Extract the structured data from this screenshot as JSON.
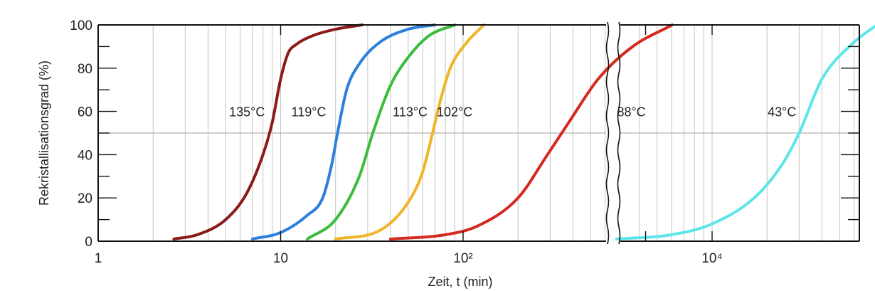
{
  "chart_data": {
    "type": "line",
    "ylabel": "Rekristallisationsgrad (%)",
    "xlabel": "Zeit, t (min)",
    "xscale": "log",
    "ylim": [
      0,
      100
    ],
    "panels": [
      {
        "xlim": [
          1,
          3000
        ]
      },
      {
        "xlim": [
          2000,
          200000
        ]
      }
    ],
    "x_tick_labels": [
      "1",
      "10",
      "10²",
      "10⁴"
    ],
    "y_tick_labels": [
      "0",
      "20",
      "40",
      "60",
      "80",
      "100"
    ],
    "grid": true,
    "reference_line_y": 50,
    "series": [
      {
        "name": "135°C",
        "color": "#8b1a1a",
        "panel": 0,
        "x": [
          2.6,
          3.5,
          5.0,
          6.5,
          8.0,
          9.0,
          10.0,
          11.0,
          12.2,
          15.0,
          20.0,
          28.0
        ],
        "y": [
          1,
          3,
          10,
          22,
          40,
          55,
          75,
          87,
          91,
          95,
          98,
          100
        ]
      },
      {
        "name": "119°C",
        "color": "#2e7fdc",
        "panel": 0,
        "x": [
          7.0,
          10.0,
          14.0,
          17.0,
          19.0,
          20.5,
          23.0,
          27.0,
          35.0,
          50.0,
          70.0
        ],
        "y": [
          1,
          4,
          12,
          20,
          35,
          50,
          70,
          82,
          92,
          98,
          100
        ]
      },
      {
        "name": "113°C",
        "color": "#3cbc3c",
        "panel": 0,
        "x": [
          14.0,
          20.0,
          27.0,
          32.0,
          40.0,
          50.0,
          65.0,
          90.0
        ],
        "y": [
          1,
          10,
          30,
          50,
          72,
          85,
          95,
          100
        ]
      },
      {
        "name": "102°C",
        "color": "#f0b429",
        "panel": 0,
        "x": [
          20.0,
          35.0,
          50.0,
          60.0,
          68.0,
          75.0,
          85.0,
          105.0,
          130.0
        ],
        "y": [
          1,
          5,
          18,
          32,
          50,
          65,
          80,
          92,
          100
        ]
      },
      {
        "name": "88°C",
        "color": "#d42a20",
        "panel": 0,
        "x": [
          40.0,
          80.0,
          120.0,
          200.0,
          290.0,
          380.0,
          550.0,
          850.0,
          1400.0
        ],
        "y": [
          1,
          3,
          7,
          20,
          40,
          55,
          75,
          90,
          100
        ]
      },
      {
        "name": "43°C",
        "color": "#5ce6ea",
        "panel": 1,
        "x": [
          3000,
          6000,
          10000,
          17000,
          24000,
          30000,
          40000,
          60000,
          80000
        ],
        "y": [
          1,
          3,
          8,
          20,
          35,
          50,
          75,
          92,
          100
        ]
      }
    ]
  }
}
